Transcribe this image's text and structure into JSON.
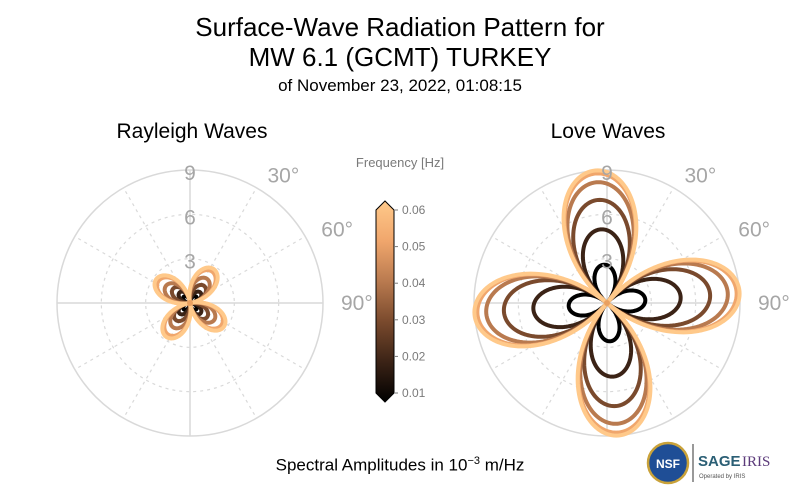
{
  "title_line1": "Surface-Wave Radiation Pattern for",
  "title_line2": "MW 6.1 (GCMT) TURKEY",
  "title_line3": "of November 23, 2022, 01:08:15",
  "footer": {
    "prefix": "Spectral Amplitudes in ",
    "base": "10",
    "exponent": "−3",
    "unit": " m/Hz"
  },
  "logos": {
    "nsf": "NSF",
    "sage": "SAGE",
    "iris": "IRIS",
    "operated": "Operated by IRIS"
  },
  "chart_data": [
    {
      "type": "polar",
      "title": "Rayleigh Waves",
      "radial_ticks": [
        3,
        6,
        9
      ],
      "radial_lim": [
        0,
        9
      ],
      "angle_ticks": [
        "30°",
        "60°",
        "90°"
      ],
      "grid": true,
      "series": [
        {
          "frequency": 0.01,
          "color": "#000000",
          "max_amplitude": 0.6,
          "lobe_angle_deg": 45
        },
        {
          "frequency": 0.02,
          "color": "#3b2316",
          "max_amplitude": 1.0,
          "lobe_angle_deg": 45
        },
        {
          "frequency": 0.03,
          "color": "#7a4a2d",
          "max_amplitude": 1.5,
          "lobe_angle_deg": 40
        },
        {
          "frequency": 0.04,
          "color": "#b97a4f",
          "max_amplitude": 2.0,
          "lobe_angle_deg": 35
        },
        {
          "frequency": 0.05,
          "color": "#f0a66c",
          "max_amplitude": 2.6,
          "lobe_angle_deg": 35
        },
        {
          "frequency": 0.06,
          "color": "#ffc98a",
          "max_amplitude": 2.8,
          "lobe_angle_deg": 35
        }
      ]
    },
    {
      "type": "polar",
      "title": "Love Waves",
      "radial_ticks": [
        3,
        6,
        9
      ],
      "radial_lim": [
        0,
        9
      ],
      "angle_ticks": [
        "30°",
        "60°",
        "90°"
      ],
      "grid": true,
      "series": [
        {
          "frequency": 0.01,
          "color": "#000000",
          "max_amplitude": 2.6,
          "lobe_angle_deg": -5
        },
        {
          "frequency": 0.02,
          "color": "#3b2316",
          "max_amplitude": 5.0,
          "lobe_angle_deg": -5
        },
        {
          "frequency": 0.03,
          "color": "#7a4a2d",
          "max_amplitude": 7.0,
          "lobe_angle_deg": -5
        },
        {
          "frequency": 0.04,
          "color": "#b97a4f",
          "max_amplitude": 8.2,
          "lobe_angle_deg": -5
        },
        {
          "frequency": 0.05,
          "color": "#f0a66c",
          "max_amplitude": 8.8,
          "lobe_angle_deg": -5
        },
        {
          "frequency": 0.06,
          "color": "#ffc98a",
          "max_amplitude": 9.0,
          "lobe_angle_deg": -5
        }
      ]
    }
  ],
  "colorbar": {
    "label": "Frequency [Hz]",
    "ticks": [
      "0.06",
      "0.05",
      "0.04",
      "0.03",
      "0.02",
      "0.01"
    ],
    "range": [
      0.01,
      0.06
    ],
    "colors": [
      "#000000",
      "#3b2316",
      "#7a4a2d",
      "#b97a4f",
      "#f0a66c",
      "#ffc98a"
    ]
  }
}
